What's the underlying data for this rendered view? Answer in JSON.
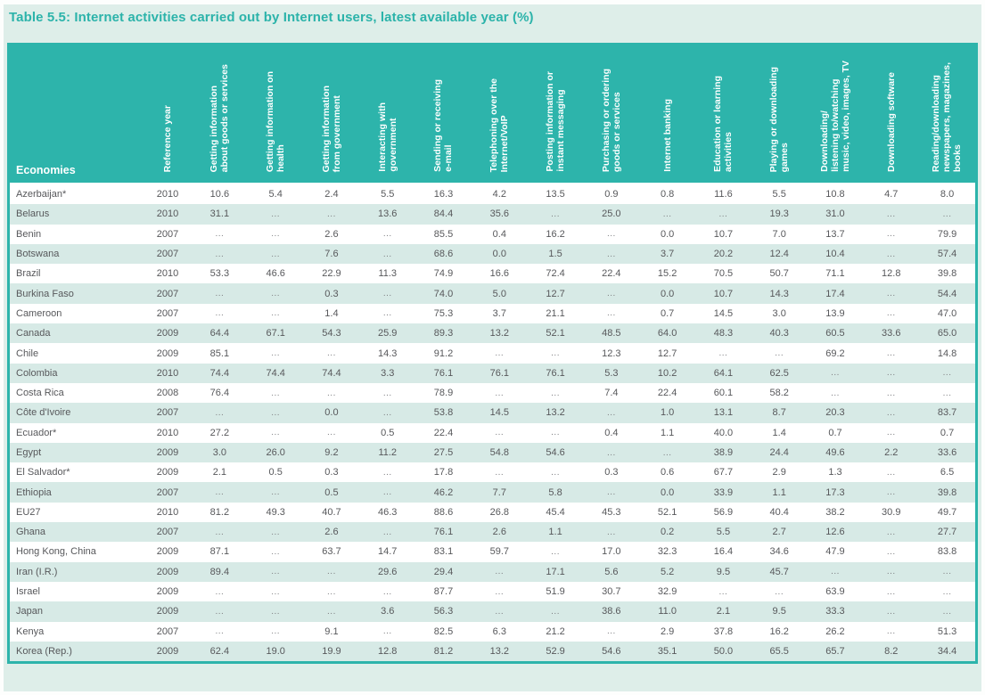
{
  "title": "Table 5.5: Internet activities carried out by Internet users, latest available year (%)",
  "colors": {
    "header_teal": "#2db4ab",
    "title_teal": "#2cb3aa",
    "page_background": "#deeee9",
    "row_stripe": "#d7eae6",
    "row_plain": "#ffffff",
    "data_text": "#57585b"
  },
  "table": {
    "economies_header": "Economies",
    "missing_marker": "...",
    "columns": [
      "Reference year",
      "Getting information\nabout goods or services",
      "Getting information on\nhealth",
      "Getting information\nfrom government",
      "Interacting with\ngovernment",
      "Sending or receiving\ne-mail",
      "Telephoning over the\nInternet/VoIP",
      "Posting information or\ninstant messaging",
      "Purchasing or ordering\ngoods or services",
      "Internet banking",
      "Education or learning\nactivities",
      "Playing or downloading\ngames",
      "Downloading/\nlistening to/watching\nmusic, video, images, TV",
      "Downloading software",
      "Reading/downloading\nnewspapers, magazines,\nbooks"
    ],
    "rows": [
      {
        "economy": "Azerbaijan*",
        "year": "2010",
        "values": [
          "10.6",
          "5.4",
          "2.4",
          "5.5",
          "16.3",
          "4.2",
          "13.5",
          "0.9",
          "0.8",
          "11.6",
          "5.5",
          "10.8",
          "4.7",
          "8.0"
        ]
      },
      {
        "economy": "Belarus",
        "year": "2010",
        "values": [
          "31.1",
          "...",
          "...",
          "13.6",
          "84.4",
          "35.6",
          "...",
          "25.0",
          "...",
          "...",
          "19.3",
          "31.0",
          "...",
          "..."
        ]
      },
      {
        "economy": "Benin",
        "year": "2007",
        "values": [
          "...",
          "...",
          "2.6",
          "...",
          "85.5",
          "0.4",
          "16.2",
          "...",
          "0.0",
          "10.7",
          "7.0",
          "13.7",
          "...",
          "79.9"
        ]
      },
      {
        "economy": "Botswana",
        "year": "2007",
        "values": [
          "...",
          "...",
          "7.6",
          "...",
          "68.6",
          "0.0",
          "1.5",
          "...",
          "3.7",
          "20.2",
          "12.4",
          "10.4",
          "...",
          "57.4"
        ]
      },
      {
        "economy": "Brazil",
        "year": "2010",
        "values": [
          "53.3",
          "46.6",
          "22.9",
          "11.3",
          "74.9",
          "16.6",
          "72.4",
          "22.4",
          "15.2",
          "70.5",
          "50.7",
          "71.1",
          "12.8",
          "39.8"
        ]
      },
      {
        "economy": "Burkina Faso",
        "year": "2007",
        "values": [
          "...",
          "...",
          "0.3",
          "...",
          "74.0",
          "5.0",
          "12.7",
          "...",
          "0.0",
          "10.7",
          "14.3",
          "17.4",
          "...",
          "54.4"
        ]
      },
      {
        "economy": "Cameroon",
        "year": "2007",
        "values": [
          "...",
          "...",
          "1.4",
          "...",
          "75.3",
          "3.7",
          "21.1",
          "...",
          "0.7",
          "14.5",
          "3.0",
          "13.9",
          "...",
          "47.0"
        ]
      },
      {
        "economy": "Canada",
        "year": "2009",
        "values": [
          "64.4",
          "67.1",
          "54.3",
          "25.9",
          "89.3",
          "13.2",
          "52.1",
          "48.5",
          "64.0",
          "48.3",
          "40.3",
          "60.5",
          "33.6",
          "65.0"
        ]
      },
      {
        "economy": "Chile",
        "year": "2009",
        "values": [
          "85.1",
          "...",
          "...",
          "14.3",
          "91.2",
          "...",
          "...",
          "12.3",
          "12.7",
          "...",
          "...",
          "69.2",
          "...",
          "14.8"
        ]
      },
      {
        "economy": "Colombia",
        "year": "2010",
        "values": [
          "74.4",
          "74.4",
          "74.4",
          "3.3",
          "76.1",
          "76.1",
          "76.1",
          "5.3",
          "10.2",
          "64.1",
          "62.5",
          "...",
          "...",
          "..."
        ]
      },
      {
        "economy": "Costa Rica",
        "year": "2008",
        "values": [
          "76.4",
          "...",
          "...",
          "...",
          "78.9",
          "...",
          "...",
          "7.4",
          "22.4",
          "60.1",
          "58.2",
          "...",
          "...",
          "..."
        ]
      },
      {
        "economy": "Côte d'Ivoire",
        "year": "2007",
        "values": [
          "...",
          "...",
          "0.0",
          "...",
          "53.8",
          "14.5",
          "13.2",
          "...",
          "1.0",
          "13.1",
          "8.7",
          "20.3",
          "...",
          "83.7"
        ]
      },
      {
        "economy": "Ecuador*",
        "year": "2010",
        "values": [
          "27.2",
          "...",
          "...",
          "0.5",
          "22.4",
          "...",
          "...",
          "0.4",
          "1.1",
          "40.0",
          "1.4",
          "0.7",
          "...",
          "0.7"
        ]
      },
      {
        "economy": "Egypt",
        "year": "2009",
        "values": [
          "3.0",
          "26.0",
          "9.2",
          "11.2",
          "27.5",
          "54.8",
          "54.6",
          "...",
          "...",
          "38.9",
          "24.4",
          "49.6",
          "2.2",
          "33.6"
        ]
      },
      {
        "economy": "El Salvador*",
        "year": "2009",
        "values": [
          "2.1",
          "0.5",
          "0.3",
          "...",
          "17.8",
          "...",
          "...",
          "0.3",
          "0.6",
          "67.7",
          "2.9",
          "1.3",
          "...",
          "6.5"
        ]
      },
      {
        "economy": "Ethiopia",
        "year": "2007",
        "values": [
          "...",
          "...",
          "0.5",
          "...",
          "46.2",
          "7.7",
          "5.8",
          "...",
          "0.0",
          "33.9",
          "1.1",
          "17.3",
          "...",
          "39.8"
        ]
      },
      {
        "economy": "EU27",
        "year": "2010",
        "values": [
          "81.2",
          "49.3",
          "40.7",
          "46.3",
          "88.6",
          "26.8",
          "45.4",
          "45.3",
          "52.1",
          "56.9",
          "40.4",
          "38.2",
          "30.9",
          "49.7"
        ]
      },
      {
        "economy": "Ghana",
        "year": "2007",
        "values": [
          "...",
          "...",
          "2.6",
          "...",
          "76.1",
          "2.6",
          "1.1",
          "...",
          "0.2",
          "5.5",
          "2.7",
          "12.6",
          "...",
          "27.7"
        ]
      },
      {
        "economy": "Hong Kong, China",
        "year": "2009",
        "values": [
          "87.1",
          "...",
          "63.7",
          "14.7",
          "83.1",
          "59.7",
          "...",
          "17.0",
          "32.3",
          "16.4",
          "34.6",
          "47.9",
          "...",
          "83.8"
        ]
      },
      {
        "economy": "Iran (I.R.)",
        "year": "2009",
        "values": [
          "89.4",
          "...",
          "...",
          "29.6",
          "29.4",
          "...",
          "17.1",
          "5.6",
          "5.2",
          "9.5",
          "45.7",
          "...",
          "...",
          "..."
        ]
      },
      {
        "economy": "Israel",
        "year": "2009",
        "values": [
          "...",
          "...",
          "...",
          "...",
          "87.7",
          "...",
          "51.9",
          "30.7",
          "32.9",
          "...",
          "...",
          "63.9",
          "...",
          "..."
        ]
      },
      {
        "economy": "Japan",
        "year": "2009",
        "values": [
          "...",
          "...",
          "...",
          "3.6",
          "56.3",
          "...",
          "...",
          "38.6",
          "11.0",
          "2.1",
          "9.5",
          "33.3",
          "...",
          "..."
        ]
      },
      {
        "economy": "Kenya",
        "year": "2007",
        "values": [
          "...",
          "...",
          "9.1",
          "...",
          "82.5",
          "6.3",
          "21.2",
          "...",
          "2.9",
          "37.8",
          "16.2",
          "26.2",
          "...",
          "51.3"
        ]
      },
      {
        "economy": "Korea (Rep.)",
        "year": "2009",
        "values": [
          "62.4",
          "19.0",
          "19.9",
          "12.8",
          "81.2",
          "13.2",
          "52.9",
          "54.6",
          "35.1",
          "50.0",
          "65.5",
          "65.7",
          "8.2",
          "34.4"
        ]
      }
    ]
  }
}
